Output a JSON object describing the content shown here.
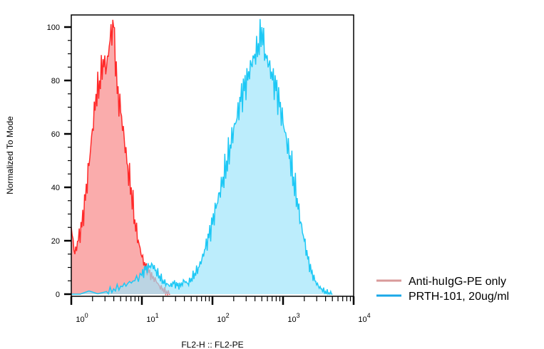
{
  "chart_data": {
    "type": "area",
    "title": "",
    "xlabel": "FL2-H :: FL2-PE",
    "ylabel": "Normalized To Mode",
    "x_scale": "log10",
    "xlim_log10": [
      0,
      4
    ],
    "ylim": [
      0,
      100
    ],
    "x_ticks": [
      {
        "exp": 0,
        "label": "10",
        "sup": "0"
      },
      {
        "exp": 1,
        "label": "10",
        "sup": "1"
      },
      {
        "exp": 2,
        "label": "10",
        "sup": "2"
      },
      {
        "exp": 3,
        "label": "10",
        "sup": "3"
      },
      {
        "exp": 4,
        "label": "10",
        "sup": "4"
      }
    ],
    "y_ticks": [
      0,
      20,
      40,
      60,
      80,
      100
    ],
    "grid": false,
    "legend_position": "right-bottom",
    "series": [
      {
        "name": "Anti-huIgG-PE only",
        "stroke": "#ff2a2a",
        "fill": "#f9a3a3",
        "legend_color": "#d99a9a",
        "x_log10": [
          0,
          0.05,
          0.1,
          0.15,
          0.2,
          0.25,
          0.3,
          0.35,
          0.4,
          0.45,
          0.5,
          0.55,
          0.6,
          0.65,
          0.7,
          0.75,
          0.8,
          0.85,
          0.9,
          0.95,
          1.0,
          1.05,
          1.1,
          1.15,
          1.2,
          1.25,
          1.3,
          1.35,
          1.4
        ],
        "values": [
          25,
          15,
          20,
          25,
          35,
          48,
          62,
          75,
          80,
          88,
          85,
          95,
          100,
          75,
          68,
          58,
          48,
          40,
          28,
          20,
          14,
          10,
          8,
          6,
          5,
          3,
          2,
          1,
          0
        ]
      },
      {
        "name": "PRTH-101, 20ug/ml",
        "stroke": "#1ec8f5",
        "fill": "#9fe6fb",
        "legend_color": "#1aa8e8",
        "x_log10": [
          0,
          0.5,
          0.6,
          0.7,
          0.8,
          0.9,
          1.0,
          1.05,
          1.1,
          1.15,
          1.2,
          1.25,
          1.3,
          1.35,
          1.4,
          1.45,
          1.5,
          1.55,
          1.6,
          1.65,
          1.7,
          1.75,
          1.8,
          1.85,
          1.9,
          1.95,
          2.0,
          2.05,
          2.1,
          2.15,
          2.2,
          2.25,
          2.3,
          2.35,
          2.4,
          2.45,
          2.5,
          2.55,
          2.6,
          2.65,
          2.7,
          2.75,
          2.8,
          2.85,
          2.9,
          2.95,
          3.0,
          3.05,
          3.1,
          3.15,
          3.2,
          3.25,
          3.3,
          3.35,
          3.4,
          3.45,
          3.5,
          3.55,
          3.6,
          3.65,
          3.7
        ],
        "values": [
          0,
          1,
          2,
          3,
          4,
          5,
          7,
          9,
          10,
          11,
          9,
          7,
          5,
          4,
          3,
          4,
          3,
          3,
          5,
          4,
          6,
          8,
          10,
          13,
          17,
          21,
          26,
          32,
          38,
          44,
          50,
          56,
          62,
          66,
          72,
          76,
          80,
          86,
          90,
          94,
          100,
          90,
          86,
          80,
          76,
          70,
          64,
          58,
          52,
          44,
          36,
          27,
          20,
          13,
          8,
          5,
          3,
          2,
          1,
          0.5,
          0
        ]
      }
    ]
  }
}
